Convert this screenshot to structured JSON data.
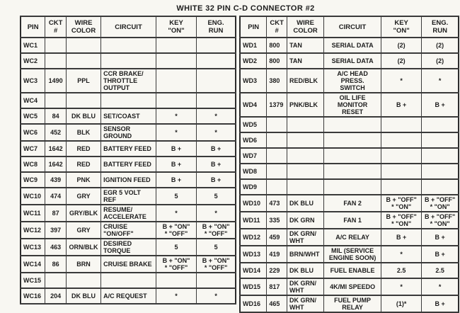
{
  "title": "WHITE 32 PIN C-D CONNECTOR #2",
  "columns": [
    "PIN",
    "CKT\n#",
    "WIRE\nCOLOR",
    "CIRCUIT",
    "KEY\n\"ON\"",
    "ENG.\nRUN"
  ],
  "left_table": {
    "rows": [
      {
        "pin": "WC1",
        "ckt": "",
        "color": "",
        "circuit": "",
        "key_on": "",
        "eng_run": ""
      },
      {
        "pin": "WC2",
        "ckt": "",
        "color": "",
        "circuit": "",
        "key_on": "",
        "eng_run": ""
      },
      {
        "pin": "WC3",
        "ckt": "1490",
        "color": "PPL",
        "circuit": "CCR BRAKE/\nTHROTTLE\nOUTPUT",
        "key_on": "",
        "eng_run": ""
      },
      {
        "pin": "WC4",
        "ckt": "",
        "color": "",
        "circuit": "",
        "key_on": "",
        "eng_run": ""
      },
      {
        "pin": "WC5",
        "ckt": "84",
        "color": "DK BLU",
        "circuit": "SET/COAST",
        "key_on": "*",
        "eng_run": "*"
      },
      {
        "pin": "WC6",
        "ckt": "452",
        "color": "BLK",
        "circuit": "SENSOR\nGROUND",
        "key_on": "*",
        "eng_run": "*"
      },
      {
        "pin": "WC7",
        "ckt": "1642",
        "color": "RED",
        "circuit": "BATTERY FEED",
        "key_on": "B +",
        "eng_run": "B +"
      },
      {
        "pin": "WC8",
        "ckt": "1642",
        "color": "RED",
        "circuit": "BATTERY FEED",
        "key_on": "B +",
        "eng_run": "B +"
      },
      {
        "pin": "WC9",
        "ckt": "439",
        "color": "PNK",
        "circuit": "IGNITION FEED",
        "key_on": "B +",
        "eng_run": "B +"
      },
      {
        "pin": "WC10",
        "ckt": "474",
        "color": "GRY",
        "circuit": "EGR 5 VOLT REF",
        "key_on": "5",
        "eng_run": "5"
      },
      {
        "pin": "WC11",
        "ckt": "87",
        "color": "GRY/BLK",
        "circuit": "RESUME/\nACCELERATE",
        "key_on": "*",
        "eng_run": "*"
      },
      {
        "pin": "WC12",
        "ckt": "397",
        "color": "GRY",
        "circuit": "CRUISE \"ON/OFF\"",
        "key_on": "B + \"ON\"\n* \"OFF\"",
        "eng_run": "B + \"ON\"\n* \"OFF\""
      },
      {
        "pin": "WC13",
        "ckt": "463",
        "color": "ORN/BLK",
        "circuit": "DESIRED TORQUE",
        "key_on": "5",
        "eng_run": "5"
      },
      {
        "pin": "WC14",
        "ckt": "86",
        "color": "BRN",
        "circuit": "CRUISE BRAKE",
        "key_on": "B + \"ON\"\n* \"OFF\"",
        "eng_run": "B + \"ON\"\n* \"OFF\""
      },
      {
        "pin": "WC15",
        "ckt": "",
        "color": "",
        "circuit": "",
        "key_on": "",
        "eng_run": ""
      },
      {
        "pin": "WC16",
        "ckt": "204",
        "color": "DK BLU",
        "circuit": "A/C REQUEST",
        "key_on": "*",
        "eng_run": "*"
      }
    ]
  },
  "right_table": {
    "rows": [
      {
        "pin": "WD1",
        "ckt": "800",
        "color": "TAN",
        "circuit": "SERIAL DATA",
        "key_on": "(2)",
        "eng_run": "(2)"
      },
      {
        "pin": "WD2",
        "ckt": "800",
        "color": "TAN",
        "circuit": "SERIAL DATA",
        "key_on": "(2)",
        "eng_run": "(2)"
      },
      {
        "pin": "WD3",
        "ckt": "380",
        "color": "RED/BLK",
        "circuit": "A/C HEAD PRESS.\nSWITCH",
        "key_on": "*",
        "eng_run": "*"
      },
      {
        "pin": "WD4",
        "ckt": "1379",
        "color": "PNK/BLK",
        "circuit": "OIL LIFE\nMONITOR RESET",
        "key_on": "B +",
        "eng_run": "B +"
      },
      {
        "pin": "WD5",
        "ckt": "",
        "color": "",
        "circuit": "",
        "key_on": "",
        "eng_run": ""
      },
      {
        "pin": "WD6",
        "ckt": "",
        "color": "",
        "circuit": "",
        "key_on": "",
        "eng_run": ""
      },
      {
        "pin": "WD7",
        "ckt": "",
        "color": "",
        "circuit": "",
        "key_on": "",
        "eng_run": ""
      },
      {
        "pin": "WD8",
        "ckt": "",
        "color": "",
        "circuit": "",
        "key_on": "",
        "eng_run": ""
      },
      {
        "pin": "WD9",
        "ckt": "",
        "color": "",
        "circuit": "",
        "key_on": "",
        "eng_run": ""
      },
      {
        "pin": "WD10",
        "ckt": "473",
        "color": "DK BLU",
        "circuit": "FAN 2",
        "key_on": "B + \"OFF\"\n* \"ON\"",
        "eng_run": "B + \"OFF\"\n* \"ON\""
      },
      {
        "pin": "WD11",
        "ckt": "335",
        "color": "DK GRN",
        "circuit": "FAN 1",
        "key_on": "B + \"OFF\"\n* \"ON\"",
        "eng_run": "B + \"OFF\"\n* \"ON\""
      },
      {
        "pin": "WD12",
        "ckt": "459",
        "color": "DK GRN/\nWHT",
        "circuit": "A/C RELAY",
        "key_on": "B +",
        "eng_run": "B +"
      },
      {
        "pin": "WD13",
        "ckt": "419",
        "color": "BRN/WHT",
        "circuit": "MIL (SERVICE\nENGINE SOON)",
        "key_on": "*",
        "eng_run": "B +"
      },
      {
        "pin": "WD14",
        "ckt": "229",
        "color": "DK BLU",
        "circuit": "FUEL ENABLE",
        "key_on": "2.5",
        "eng_run": "2.5"
      },
      {
        "pin": "WD15",
        "ckt": "817",
        "color": "DK GRN/\nWHT",
        "circuit": "4K/MI SPEEDO",
        "key_on": "*",
        "eng_run": "*"
      },
      {
        "pin": "WD16",
        "ckt": "465",
        "color": "DK GRN/\nWHT",
        "circuit": "FUEL PUMP\nRELAY",
        "key_on": "(1)*",
        "eng_run": "B +"
      }
    ]
  }
}
